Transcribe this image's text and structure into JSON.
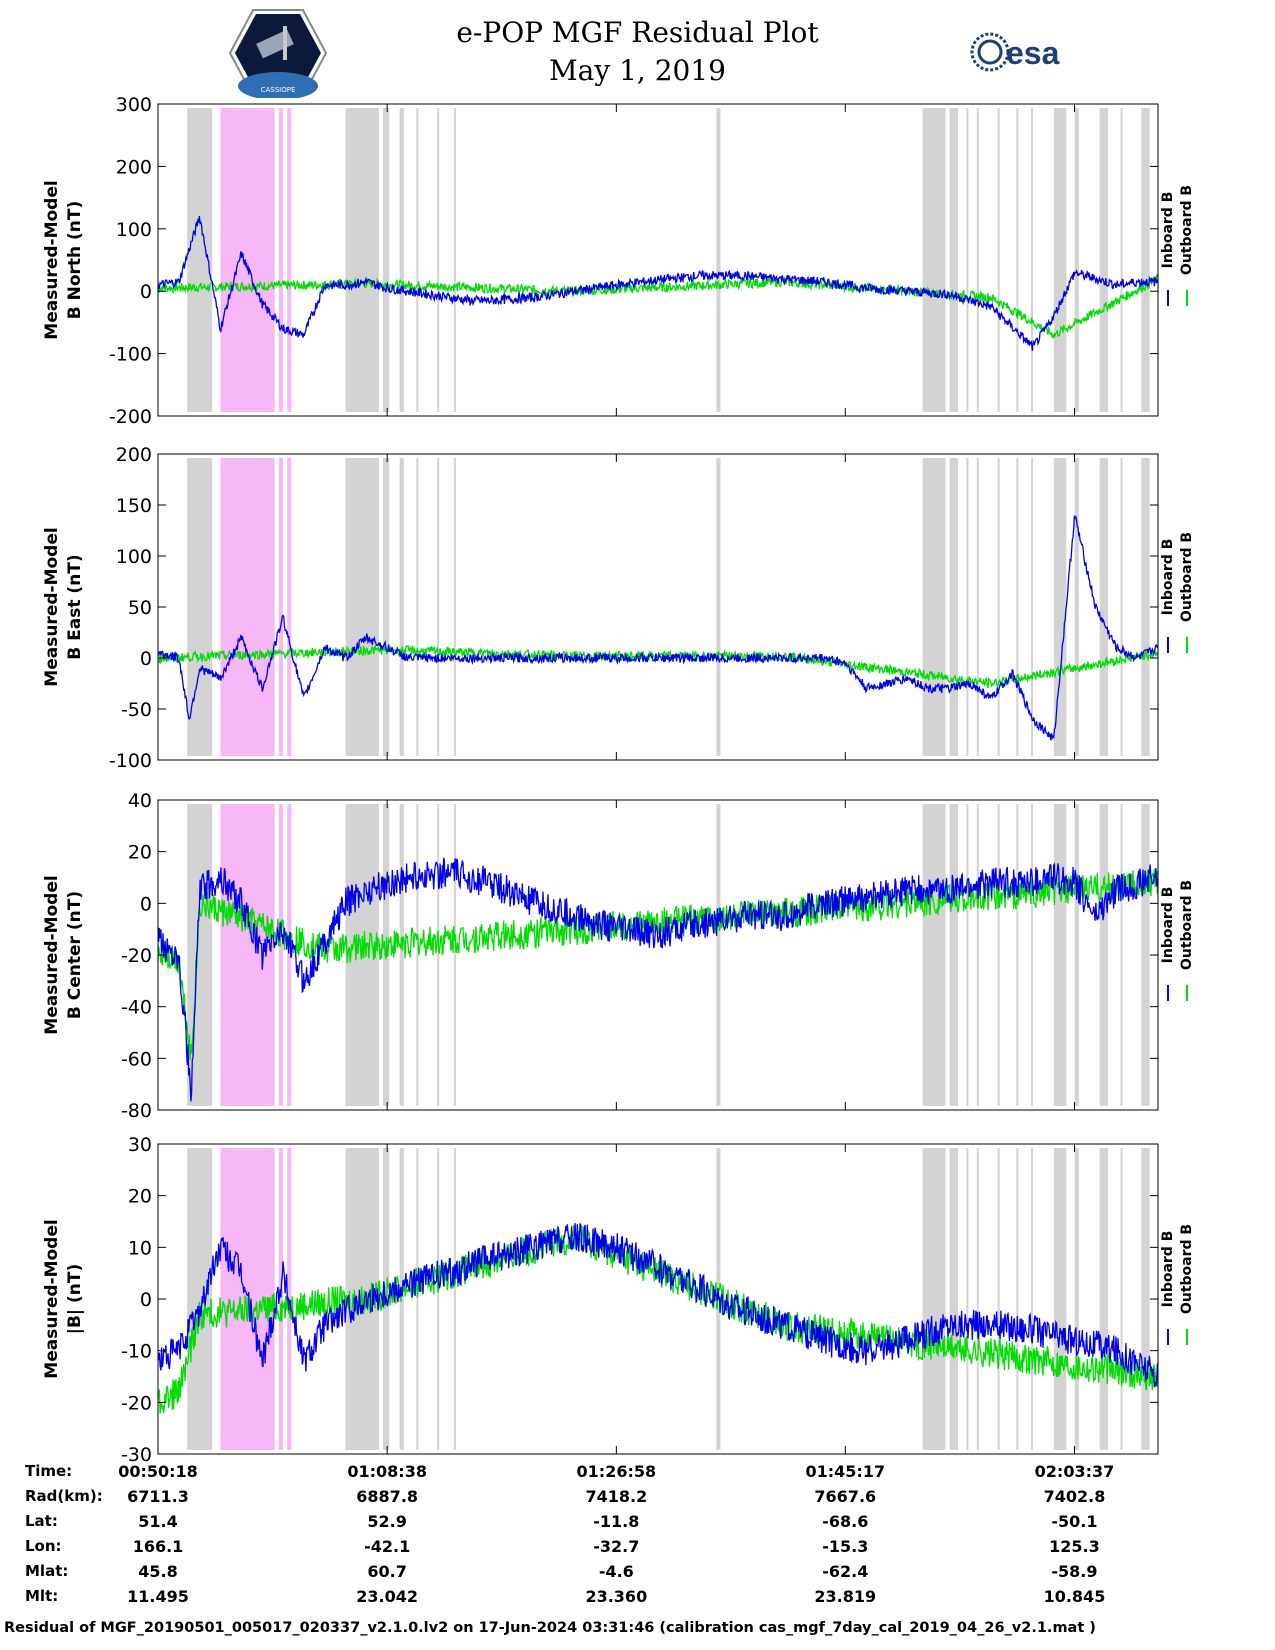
{
  "header": {
    "title_line1": "e-POP MGF Residual Plot",
    "title_line2": "May 1, 2019",
    "logo_left_text": "CASSIOPE",
    "logo_right_text": "esa"
  },
  "legend": {
    "inboard": "Inboard B",
    "outboard": "Outboard B",
    "inboard_color": "#0000ee",
    "outboard_color": "#00dd00"
  },
  "colors": {
    "gap_shading": "#d3d3d3",
    "pink_shading": "#f6b8f6",
    "inboard": "#0000ee",
    "outboard": "#00dd00"
  },
  "chart_data": [
    {
      "type": "line",
      "title": "",
      "ylabel_line1": "Measured-Model",
      "ylabel_line2": "B North (nT)",
      "ylim": [
        -200,
        300
      ],
      "yticks": [
        -200,
        -100,
        0,
        100,
        200,
        300
      ],
      "series": [
        {
          "name": "Inboard B",
          "x_seconds": [
            0,
            100,
            200,
            300,
            400,
            500,
            600,
            700,
            800,
            900,
            1000,
            1100,
            1200,
            1300,
            1400,
            1500,
            1600,
            1800,
            2000,
            2200,
            2400,
            2600,
            2800,
            3000,
            3200,
            3400,
            3600,
            3800,
            4000,
            4200,
            4300,
            4400,
            4500,
            4600,
            4700,
            4800
          ],
          "values": [
            10,
            15,
            120,
            -60,
            60,
            -20,
            -60,
            -70,
            10,
            10,
            15,
            5,
            0,
            -5,
            -10,
            -15,
            -15,
            -10,
            0,
            10,
            18,
            25,
            25,
            20,
            15,
            5,
            0,
            -5,
            -25,
            -90,
            -40,
            30,
            20,
            10,
            15,
            15
          ]
        },
        {
          "name": "Outboard B",
          "x_seconds": [
            0,
            1000,
            2000,
            3000,
            4000,
            4300,
            4800
          ],
          "values": [
            5,
            12,
            0,
            15,
            -10,
            -70,
            20
          ]
        }
      ]
    },
    {
      "type": "line",
      "title": "",
      "ylabel_line1": "Measured-Model",
      "ylabel_line2": "B East (nT)",
      "ylim": [
        -100,
        200
      ],
      "yticks": [
        -100,
        -50,
        0,
        50,
        100,
        150,
        200
      ],
      "series": [
        {
          "name": "Inboard B",
          "x_seconds": [
            0,
            100,
            150,
            200,
            300,
            400,
            500,
            600,
            700,
            800,
            900,
            1000,
            1100,
            1200,
            1600,
            2000,
            2400,
            2800,
            3000,
            3100,
            3200,
            3300,
            3400,
            3600,
            3700,
            3800,
            3900,
            4000,
            4100,
            4200,
            4300,
            4400,
            4500,
            4600,
            4700,
            4800
          ],
          "values": [
            5,
            0,
            -60,
            -10,
            -20,
            20,
            -30,
            40,
            -40,
            10,
            0,
            20,
            10,
            0,
            0,
            0,
            0,
            0,
            0,
            0,
            0,
            -5,
            -30,
            -20,
            -30,
            -30,
            -25,
            -40,
            -15,
            -60,
            -80,
            140,
            50,
            10,
            0,
            10
          ]
        },
        {
          "name": "Outboard B",
          "x_seconds": [
            0,
            1100,
            2000,
            3000,
            4000,
            4800
          ],
          "values": [
            0,
            8,
            2,
            2,
            -25,
            5
          ]
        }
      ]
    },
    {
      "type": "line",
      "title": "",
      "ylabel_line1": "Measured-Model",
      "ylabel_line2": "B Center (nT)",
      "ylim": [
        -80,
        40
      ],
      "yticks": [
        -80,
        -60,
        -40,
        -20,
        0,
        20,
        40
      ],
      "series": [
        {
          "name": "Inboard B",
          "x_seconds": [
            0,
            100,
            160,
            200,
            300,
            400,
            500,
            600,
            700,
            800,
            900,
            1000,
            1200,
            1400,
            1600,
            1800,
            2000,
            2200,
            2400,
            2600,
            2800,
            3000,
            3200,
            3400,
            3600,
            3800,
            4000,
            4200,
            4300,
            4400,
            4500,
            4600,
            4800
          ],
          "values": [
            -15,
            -20,
            -75,
            5,
            10,
            0,
            -20,
            -10,
            -30,
            -15,
            0,
            5,
            10,
            12,
            8,
            0,
            -5,
            -10,
            -12,
            -8,
            -5,
            -5,
            0,
            2,
            5,
            5,
            8,
            8,
            10,
            8,
            -5,
            5,
            10
          ]
        },
        {
          "name": "Outboard B",
          "x_seconds": [
            0,
            100,
            160,
            200,
            800,
            4800
          ],
          "values": [
            -18,
            -22,
            -60,
            0,
            -18,
            8
          ]
        }
      ]
    },
    {
      "type": "line",
      "title": "",
      "ylabel_line1": "Measured-Model",
      "ylabel_line2": "|B| (nT)",
      "ylim": [
        -30,
        30
      ],
      "yticks": [
        -30,
        -20,
        -10,
        0,
        10,
        20,
        30
      ],
      "series": [
        {
          "name": "Inboard B",
          "x_seconds": [
            0,
            100,
            200,
            300,
            400,
            500,
            600,
            700,
            800,
            1000,
            1200,
            1400,
            1600,
            1800,
            2000,
            2200,
            2400,
            2600,
            2800,
            3000,
            3200,
            3400,
            3600,
            3800,
            4000,
            4200,
            4400,
            4600,
            4800
          ],
          "values": [
            -12,
            -10,
            -2,
            10,
            5,
            -12,
            5,
            -12,
            -5,
            0,
            3,
            5,
            8,
            10,
            12,
            10,
            6,
            2,
            -2,
            -5,
            -8,
            -10,
            -8,
            -5,
            -5,
            -6,
            -8,
            -10,
            -15
          ]
        },
        {
          "name": "Outboard B",
          "x_seconds": [
            0,
            100,
            200,
            1000,
            2000,
            3000,
            4800
          ],
          "values": [
            -20,
            -18,
            -3,
            0,
            12,
            -5,
            -15
          ]
        }
      ]
    }
  ],
  "x_axis": {
    "tick_seconds": [
      0,
      1100,
      2200,
      3299,
      4399
    ],
    "total_seconds": 4800
  },
  "gray_intervals_seconds": [
    [
      140,
      260
    ],
    [
      300,
      340
    ],
    [
      360,
      460
    ],
    [
      900,
      1060
    ],
    [
      1080,
      1110
    ],
    [
      1160,
      1180
    ],
    [
      1240,
      1250
    ],
    [
      1340,
      1350
    ],
    [
      1420,
      1430
    ],
    [
      2680,
      2700
    ],
    [
      3670,
      3780
    ],
    [
      3800,
      3840
    ],
    [
      3880,
      3890
    ],
    [
      3930,
      3940
    ],
    [
      4030,
      4040
    ],
    [
      4120,
      4130
    ],
    [
      4190,
      4200
    ],
    [
      4300,
      4360
    ],
    [
      4400,
      4420
    ],
    [
      4520,
      4560
    ],
    [
      4620,
      4630
    ],
    [
      4720,
      4760
    ]
  ],
  "pink_intervals_seconds": [
    [
      300,
      560
    ],
    [
      580,
      600
    ],
    [
      620,
      640
    ]
  ],
  "info": {
    "rows": [
      {
        "label": "Time:",
        "values": [
          "00:50:18",
          "01:08:38",
          "01:26:58",
          "01:45:17",
          "02:03:37"
        ]
      },
      {
        "label": "Rad(km):",
        "values": [
          "6711.3",
          "6887.8",
          "7418.2",
          "7667.6",
          "7402.8"
        ]
      },
      {
        "label": "Lat:",
        "values": [
          "51.4",
          "52.9",
          "-11.8",
          "-68.6",
          "-50.1"
        ]
      },
      {
        "label": "Lon:",
        "values": [
          "166.1",
          "-42.1",
          "-32.7",
          "-15.3",
          "125.3"
        ]
      },
      {
        "label": "Mlat:",
        "values": [
          "45.8",
          "60.7",
          "-4.6",
          "-62.4",
          "-58.9"
        ]
      },
      {
        "label": "Mlt:",
        "values": [
          "11.495",
          "23.042",
          "23.360",
          "23.819",
          "10.845"
        ]
      }
    ]
  },
  "footer": "Residual of MGF_20190501_005017_020337_v2.1.0.lv2 on 17-Jun-2024 03:31:46 (calibration cas_mgf_7day_cal_2019_04_26_v2.1.mat )"
}
